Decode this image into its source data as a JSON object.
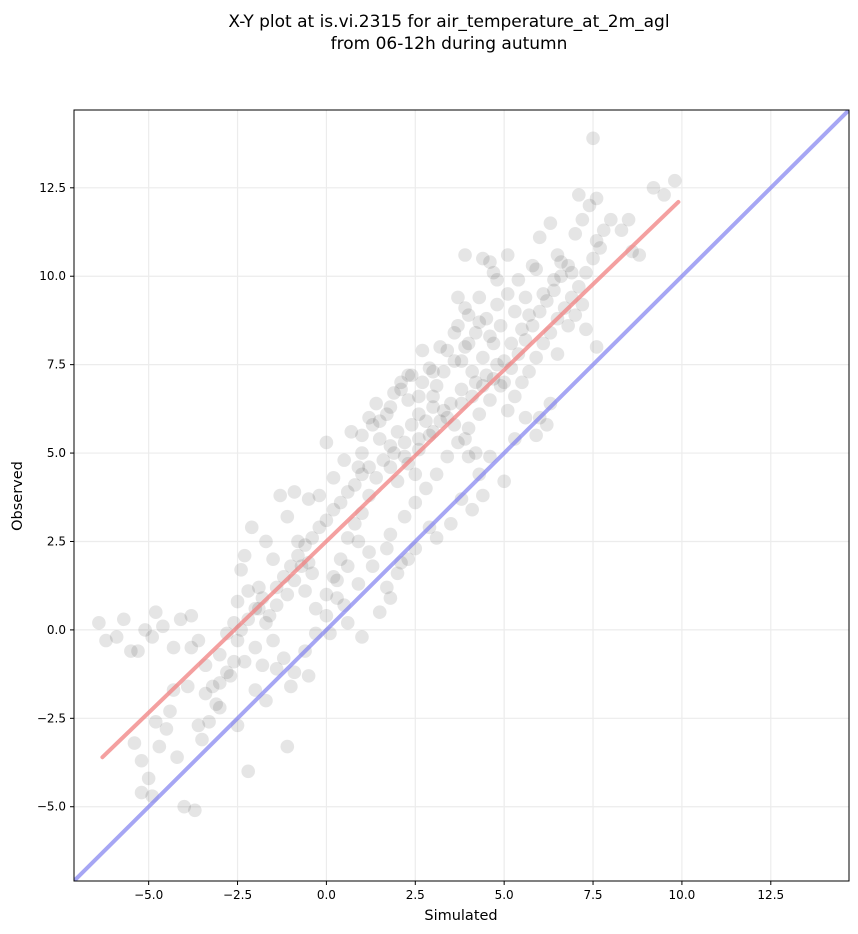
{
  "chart_data": {
    "type": "scatter",
    "title_line1": "X-Y plot at is.vi.2315 for air_temperature_at_2m_agl",
    "title_line2": "from 06-12h during autumn",
    "xlabel": "Simulated",
    "ylabel": "Observed",
    "xlim": [
      -7.1,
      14.7
    ],
    "ylim": [
      -7.1,
      14.7
    ],
    "xticks": [
      -5.0,
      -2.5,
      0.0,
      2.5,
      5.0,
      7.5,
      10.0,
      12.5
    ],
    "yticks": [
      -5.0,
      -2.5,
      0.0,
      2.5,
      5.0,
      7.5,
      10.0,
      12.5
    ],
    "xtick_labels": [
      "−5.0",
      "−2.5",
      "0.0",
      "2.5",
      "5.0",
      "7.5",
      "10.0",
      "12.5"
    ],
    "ytick_labels": [
      "−5.0",
      "−2.5",
      "0.0",
      "2.5",
      "5.0",
      "7.5",
      "10.0",
      "12.5"
    ],
    "grid": true,
    "point_color": "#000000",
    "point_alpha": 0.1,
    "regression_line": {
      "x": [
        -6.3,
        9.9
      ],
      "y": [
        -3.6,
        12.1
      ],
      "color": "#f08080"
    },
    "identity_line": {
      "x": [
        -7.1,
        14.7
      ],
      "y": [
        -7.1,
        14.7
      ],
      "color": "#8080f0"
    },
    "points": [
      [
        -6.4,
        0.2
      ],
      [
        -6.2,
        -0.3
      ],
      [
        -5.9,
        -0.2
      ],
      [
        -5.7,
        0.3
      ],
      [
        -5.5,
        -0.6
      ],
      [
        -5.3,
        -0.6
      ],
      [
        -5.1,
        0.0
      ],
      [
        -4.9,
        -0.2
      ],
      [
        -4.8,
        0.5
      ],
      [
        -4.6,
        0.1
      ],
      [
        -4.3,
        -0.5
      ],
      [
        -4.1,
        0.3
      ],
      [
        -3.8,
        0.4
      ],
      [
        -3.6,
        -0.3
      ],
      [
        -3.4,
        -1.0
      ],
      [
        -3.2,
        -1.6
      ],
      [
        -3.0,
        -0.7
      ],
      [
        -2.8,
        -1.2
      ],
      [
        -2.6,
        -0.9
      ],
      [
        -2.5,
        -0.3
      ],
      [
        -5.4,
        -3.2
      ],
      [
        -5.2,
        -3.7
      ],
      [
        -5.0,
        -4.2
      ],
      [
        -4.9,
        -4.7
      ],
      [
        -4.7,
        -3.3
      ],
      [
        -4.5,
        -2.8
      ],
      [
        -4.4,
        -2.3
      ],
      [
        -4.2,
        -3.6
      ],
      [
        -4.0,
        -5.0
      ],
      [
        -3.7,
        -5.1
      ],
      [
        -3.5,
        -3.1
      ],
      [
        -3.3,
        -2.6
      ],
      [
        -3.1,
        -2.1
      ],
      [
        -2.2,
        -4.0
      ],
      [
        -1.1,
        -3.3
      ],
      [
        -5.2,
        -4.6
      ],
      [
        -4.8,
        -2.6
      ],
      [
        -4.3,
        -1.7
      ],
      [
        -3.9,
        -1.6
      ],
      [
        -3.6,
        -2.7
      ],
      [
        -2.4,
        1.7
      ],
      [
        -2.3,
        2.1
      ],
      [
        -2.1,
        2.9
      ],
      [
        -1.9,
        1.2
      ],
      [
        -1.7,
        2.5
      ],
      [
        -1.5,
        2.0
      ],
      [
        -1.3,
        3.8
      ],
      [
        -1.1,
        3.2
      ],
      [
        -0.9,
        3.9
      ],
      [
        -0.7,
        1.8
      ],
      [
        -2.6,
        0.2
      ],
      [
        -2.4,
        0.0
      ],
      [
        -2.2,
        0.3
      ],
      [
        -2.0,
        0.6
      ],
      [
        -1.8,
        0.9
      ],
      [
        -1.6,
        0.4
      ],
      [
        -1.4,
        1.2
      ],
      [
        -1.2,
        1.5
      ],
      [
        -1.0,
        1.8
      ],
      [
        -0.8,
        2.1
      ],
      [
        -0.6,
        2.4
      ],
      [
        -0.4,
        2.6
      ],
      [
        -0.2,
        2.9
      ],
      [
        0.0,
        3.1
      ],
      [
        0.2,
        3.4
      ],
      [
        0.4,
        3.6
      ],
      [
        0.6,
        3.9
      ],
      [
        0.8,
        4.1
      ],
      [
        1.0,
        4.4
      ],
      [
        1.2,
        4.6
      ],
      [
        -2.0,
        -0.5
      ],
      [
        -1.8,
        -1.0
      ],
      [
        -1.5,
        -0.3
      ],
      [
        -1.2,
        -0.8
      ],
      [
        -0.9,
        -1.2
      ],
      [
        -0.6,
        -0.6
      ],
      [
        -0.3,
        -0.1
      ],
      [
        0.0,
        0.4
      ],
      [
        0.3,
        0.9
      ],
      [
        0.6,
        0.2
      ],
      [
        -1.0,
        -1.6
      ],
      [
        -0.5,
        -1.3
      ],
      [
        0.1,
        -0.1
      ],
      [
        0.5,
        0.7
      ],
      [
        0.9,
        1.3
      ],
      [
        1.3,
        1.8
      ],
      [
        1.7,
        2.3
      ],
      [
        1.0,
        -0.2
      ],
      [
        1.8,
        0.9
      ],
      [
        2.1,
        1.9
      ],
      [
        0.2,
        1.5
      ],
      [
        0.4,
        2.0
      ],
      [
        0.6,
        2.6
      ],
      [
        0.8,
        3.0
      ],
      [
        1.0,
        3.3
      ],
      [
        1.2,
        3.8
      ],
      [
        1.4,
        4.3
      ],
      [
        1.6,
        4.8
      ],
      [
        1.8,
        5.2
      ],
      [
        2.0,
        5.6
      ],
      [
        1.5,
        5.9
      ],
      [
        1.8,
        6.3
      ],
      [
        2.1,
        6.8
      ],
      [
        2.4,
        7.2
      ],
      [
        2.7,
        7.0
      ],
      [
        3.0,
        6.6
      ],
      [
        3.3,
        6.2
      ],
      [
        3.6,
        5.8
      ],
      [
        3.9,
        5.4
      ],
      [
        4.2,
        5.0
      ],
      [
        2.0,
        4.2
      ],
      [
        2.3,
        4.7
      ],
      [
        2.6,
        5.1
      ],
      [
        2.9,
        5.5
      ],
      [
        3.2,
        5.9
      ],
      [
        3.5,
        6.4
      ],
      [
        3.8,
        6.8
      ],
      [
        4.1,
        7.3
      ],
      [
        4.4,
        7.7
      ],
      [
        4.7,
        8.1
      ],
      [
        2.2,
        3.2
      ],
      [
        2.5,
        3.6
      ],
      [
        2.8,
        4.0
      ],
      [
        3.1,
        4.4
      ],
      [
        3.4,
        4.9
      ],
      [
        3.7,
        5.3
      ],
      [
        4.0,
        5.7
      ],
      [
        4.3,
        6.1
      ],
      [
        4.6,
        6.5
      ],
      [
        4.9,
        6.9
      ],
      [
        2.4,
        5.8
      ],
      [
        2.6,
        6.1
      ],
      [
        2.2,
        5.3
      ],
      [
        2.8,
        5.9
      ],
      [
        3.0,
        6.3
      ],
      [
        2.3,
        6.5
      ],
      [
        1.9,
        5.0
      ],
      [
        2.5,
        4.4
      ],
      [
        3.3,
        7.3
      ],
      [
        3.6,
        7.6
      ],
      [
        3.9,
        8.0
      ],
      [
        4.2,
        8.4
      ],
      [
        4.5,
        8.8
      ],
      [
        4.8,
        9.2
      ],
      [
        5.1,
        9.5
      ],
      [
        5.4,
        9.9
      ],
      [
        3.7,
        8.6
      ],
      [
        3.9,
        9.1
      ],
      [
        4.3,
        9.4
      ],
      [
        4.7,
        10.1
      ],
      [
        5.0,
        7.0
      ],
      [
        5.2,
        7.4
      ],
      [
        5.4,
        7.8
      ],
      [
        5.6,
        8.2
      ],
      [
        5.8,
        8.6
      ],
      [
        6.0,
        9.0
      ],
      [
        6.2,
        9.3
      ],
      [
        6.4,
        9.6
      ],
      [
        6.6,
        10.0
      ],
      [
        6.8,
        10.3
      ],
      [
        5.1,
        6.2
      ],
      [
        5.3,
        6.6
      ],
      [
        5.5,
        7.0
      ],
      [
        5.7,
        7.3
      ],
      [
        5.9,
        7.7
      ],
      [
        6.1,
        8.1
      ],
      [
        6.3,
        8.4
      ],
      [
        6.5,
        8.8
      ],
      [
        6.7,
        9.1
      ],
      [
        6.9,
        9.4
      ],
      [
        7.1,
        9.7
      ],
      [
        7.3,
        10.1
      ],
      [
        7.5,
        10.5
      ],
      [
        7.7,
        10.8
      ],
      [
        7.0,
        11.2
      ],
      [
        7.2,
        11.6
      ],
      [
        7.4,
        12.0
      ],
      [
        7.1,
        12.3
      ],
      [
        7.6,
        11.0
      ],
      [
        7.8,
        11.3
      ],
      [
        6.0,
        11.1
      ],
      [
        6.3,
        11.5
      ],
      [
        6.5,
        10.6
      ],
      [
        5.8,
        10.3
      ],
      [
        8.0,
        11.6
      ],
      [
        8.3,
        11.3
      ],
      [
        8.6,
        10.7
      ],
      [
        8.8,
        10.6
      ],
      [
        9.2,
        12.5
      ],
      [
        9.5,
        12.3
      ],
      [
        9.8,
        12.7
      ],
      [
        7.5,
        13.9
      ],
      [
        7.6,
        12.2
      ],
      [
        8.5,
        11.6
      ],
      [
        7.0,
        8.9
      ],
      [
        7.3,
        8.5
      ],
      [
        7.6,
        8.0
      ],
      [
        7.2,
        9.2
      ],
      [
        6.8,
        8.6
      ],
      [
        6.5,
        7.8
      ],
      [
        6.0,
        6.0
      ],
      [
        6.2,
        5.8
      ],
      [
        5.9,
        5.5
      ],
      [
        6.3,
        6.4
      ],
      [
        5.6,
        6.0
      ],
      [
        5.3,
        5.4
      ],
      [
        5.0,
        4.2
      ],
      [
        4.6,
        4.9
      ],
      [
        4.3,
        4.4
      ],
      [
        4.0,
        4.9
      ],
      [
        4.4,
        3.8
      ],
      [
        4.1,
        3.4
      ],
      [
        3.8,
        3.7
      ],
      [
        3.5,
        3.0
      ],
      [
        3.1,
        2.6
      ],
      [
        2.9,
        2.9
      ],
      [
        2.5,
        2.3
      ],
      [
        2.3,
        2.0
      ],
      [
        2.0,
        1.6
      ],
      [
        1.7,
        1.2
      ],
      [
        1.5,
        0.5
      ],
      [
        1.8,
        2.7
      ],
      [
        1.2,
        2.2
      ],
      [
        0.9,
        2.5
      ],
      [
        0.6,
        1.8
      ],
      [
        0.3,
        1.4
      ],
      [
        0.0,
        1.0
      ],
      [
        -0.3,
        0.6
      ],
      [
        -0.5,
        1.9
      ],
      [
        -0.8,
        2.5
      ],
      [
        0.7,
        5.6
      ],
      [
        1.0,
        5.0
      ],
      [
        1.3,
        5.8
      ],
      [
        1.5,
        5.4
      ],
      [
        0.9,
        4.6
      ],
      [
        0.5,
        4.8
      ],
      [
        0.2,
        4.3
      ],
      [
        0.0,
        5.3
      ],
      [
        -0.2,
        3.8
      ],
      [
        -0.5,
        3.7
      ],
      [
        3.2,
        8.0
      ],
      [
        3.4,
        7.9
      ],
      [
        3.0,
        7.3
      ],
      [
        2.7,
        7.9
      ],
      [
        3.6,
        8.4
      ],
      [
        4.0,
        8.1
      ],
      [
        3.8,
        7.6
      ],
      [
        4.2,
        7.0
      ],
      [
        4.5,
        7.2
      ],
      [
        4.8,
        7.5
      ],
      [
        5.2,
        8.1
      ],
      [
        5.5,
        8.5
      ],
      [
        5.7,
        8.9
      ],
      [
        6.1,
        9.5
      ],
      [
        6.4,
        9.9
      ],
      [
        6.6,
        10.4
      ],
      [
        6.9,
        10.1
      ],
      [
        5.9,
        10.2
      ],
      [
        5.6,
        9.4
      ],
      [
        5.3,
        9.0
      ],
      [
        4.9,
        8.6
      ],
      [
        4.6,
        8.3
      ],
      [
        4.3,
        8.7
      ],
      [
        4.0,
        8.9
      ],
      [
        3.7,
        9.4
      ],
      [
        3.9,
        10.6
      ],
      [
        4.4,
        10.5
      ],
      [
        4.6,
        10.4
      ],
      [
        4.8,
        9.9
      ],
      [
        5.1,
        10.6
      ],
      [
        1.2,
        6.0
      ],
      [
        1.0,
        5.5
      ],
      [
        1.4,
        6.4
      ],
      [
        1.7,
        6.1
      ],
      [
        1.9,
        6.7
      ],
      [
        2.1,
        7.0
      ],
      [
        2.3,
        7.2
      ],
      [
        2.6,
        6.6
      ],
      [
        2.9,
        7.4
      ],
      [
        3.1,
        6.9
      ],
      [
        1.8,
        4.6
      ],
      [
        2.2,
        4.9
      ],
      [
        2.6,
        5.4
      ],
      [
        3.0,
        5.6
      ],
      [
        3.4,
        6.0
      ],
      [
        3.8,
        6.4
      ],
      [
        4.1,
        6.6
      ],
      [
        4.4,
        6.9
      ],
      [
        4.7,
        7.1
      ],
      [
        5.0,
        7.6
      ],
      [
        -2.8,
        -0.1
      ],
      [
        -2.5,
        0.8
      ],
      [
        -2.2,
        1.1
      ],
      [
        -1.9,
        0.6
      ],
      [
        -1.7,
        0.2
      ],
      [
        -1.4,
        0.7
      ],
      [
        -1.1,
        1.0
      ],
      [
        -0.9,
        1.4
      ],
      [
        -0.6,
        1.1
      ],
      [
        -0.4,
        1.6
      ],
      [
        -3.4,
        -1.8
      ],
      [
        -3.0,
        -1.5
      ],
      [
        -2.7,
        -1.3
      ],
      [
        -2.3,
        -0.9
      ],
      [
        -2.0,
        -1.7
      ],
      [
        -1.7,
        -2.0
      ],
      [
        -1.4,
        -1.1
      ],
      [
        -3.0,
        -2.2
      ],
      [
        -2.5,
        -2.7
      ],
      [
        -3.8,
        -0.5
      ]
    ]
  }
}
